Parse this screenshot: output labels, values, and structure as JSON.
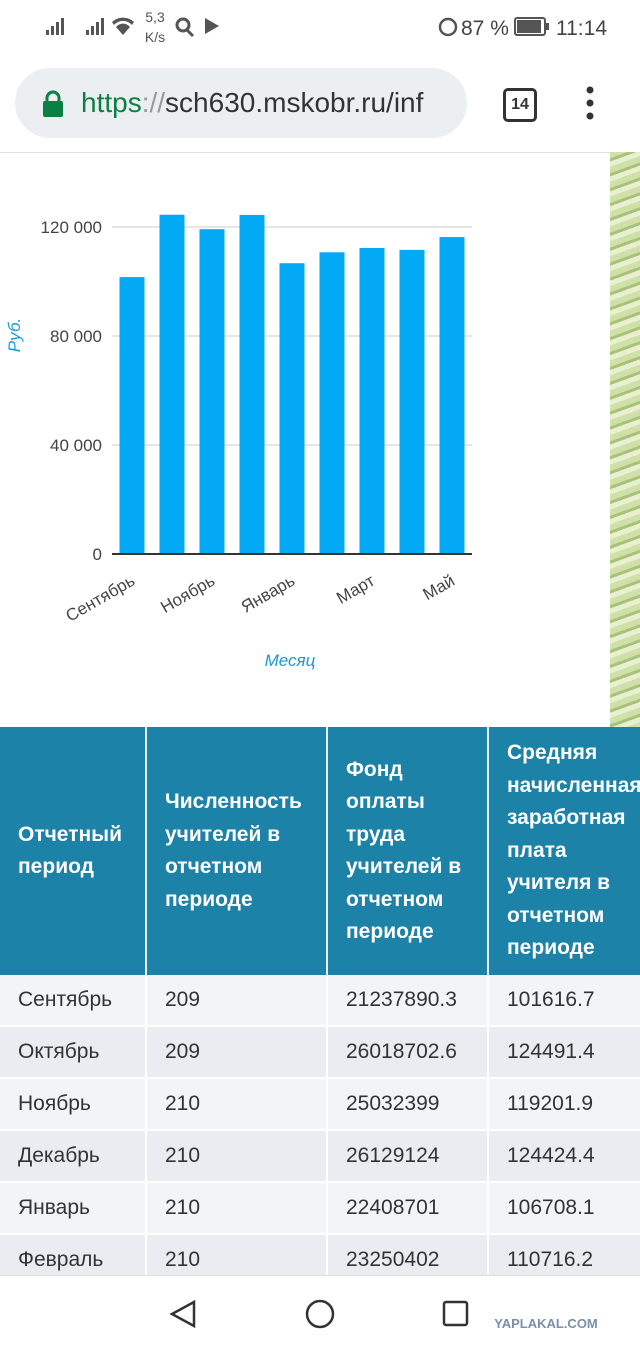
{
  "status_bar": {
    "speed": "5,3",
    "speed_unit": "K/s",
    "battery": "87 %",
    "time": "11:14"
  },
  "browser": {
    "url_scheme": "https",
    "url_sep": "://",
    "url_rest": "sch630.mskobr.ru/inf",
    "tabs": "14"
  },
  "chart_data": {
    "type": "bar",
    "y_label": "Руб.",
    "x_label": "Месяц",
    "categories": [
      "Сентябрь",
      null,
      "Ноябрь",
      null,
      "Январь",
      null,
      "Март",
      null,
      "Май"
    ],
    "values": [
      101616.7,
      124491.4,
      119201.9,
      124424.4,
      106708.1,
      110716.2,
      112300,
      111600,
      116300
    ],
    "color": "#03a9f4",
    "ylim": [
      0,
      130000
    ],
    "yticks": [
      0,
      {
        "value": 40000,
        "label": "40 000"
      },
      {
        "value": 80000,
        "label": "80 000"
      },
      {
        "value": 120000,
        "label": "120 000"
      }
    ],
    "grid": true
  },
  "table": {
    "header": [
      "Отчетный период",
      "Численность учителей в отчетном периоде",
      "Фонд оплаты труда учителей в отчетном периоде",
      "Средняя начисленная заработная плата учителя в отчетном периоде"
    ],
    "rows": [
      [
        "Сентябрь",
        "209",
        "21237890.3",
        "101616.7"
      ],
      [
        "Октябрь",
        "209",
        "26018702.6",
        "124491.4"
      ],
      [
        "Ноябрь",
        "210",
        "25032399",
        "119201.9"
      ],
      [
        "Декабрь",
        "210",
        "26129124",
        "124424.4"
      ],
      [
        "Январь",
        "210",
        "22408701",
        "106708.1"
      ],
      [
        "Февраль",
        "210",
        "23250402",
        "110716.2"
      ]
    ]
  },
  "watermark": "YAPLAKAL.COM"
}
